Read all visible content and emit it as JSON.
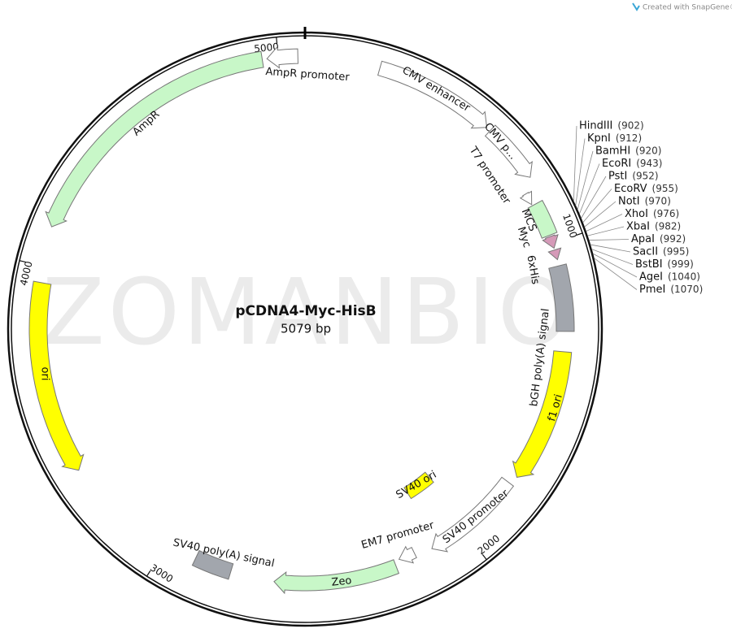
{
  "branding": "Created with SnapGene®",
  "watermark": "ZOMANBIO",
  "plasmid": {
    "name": "pCDNA4-Myc-HisB",
    "size": "5079 bp"
  },
  "ticks": [
    "5000",
    "1000",
    "2000",
    "3000",
    "4000"
  ],
  "features": [
    {
      "label": "CMV enhancer"
    },
    {
      "label": "CMV p..."
    },
    {
      "label": "T7 promoter"
    },
    {
      "label": "MCS"
    },
    {
      "label": "Myc"
    },
    {
      "label": "6xHis"
    },
    {
      "label": "bGH poly(A) signal"
    },
    {
      "label": "f1 ori"
    },
    {
      "label": "SV40 promoter"
    },
    {
      "label": "SV40 ori"
    },
    {
      "label": "EM7 promoter"
    },
    {
      "label": "Zeo"
    },
    {
      "label": "SV40 poly(A) signal"
    },
    {
      "label": "ori"
    },
    {
      "label": "AmpR"
    },
    {
      "label": "AmpR promoter"
    }
  ],
  "sites": [
    {
      "name": "HindIII",
      "position": "(902)"
    },
    {
      "name": "KpnI",
      "position": "(912)"
    },
    {
      "name": "BamHI",
      "position": "(920)"
    },
    {
      "name": "EcoRI",
      "position": "(943)"
    },
    {
      "name": "PstI",
      "position": "(952)"
    },
    {
      "name": "EcoRV",
      "position": "(955)"
    },
    {
      "name": "NotI",
      "position": "(970)"
    },
    {
      "name": "XhoI",
      "position": "(976)"
    },
    {
      "name": "XbaI",
      "position": "(982)"
    },
    {
      "name": "ApaI",
      "position": "(992)"
    },
    {
      "name": "SacII",
      "position": "(995)"
    },
    {
      "name": "BstBI",
      "position": "(999)"
    },
    {
      "name": "AgeI",
      "position": "(1040)"
    },
    {
      "name": "PmeI",
      "position": "(1070)"
    }
  ]
}
